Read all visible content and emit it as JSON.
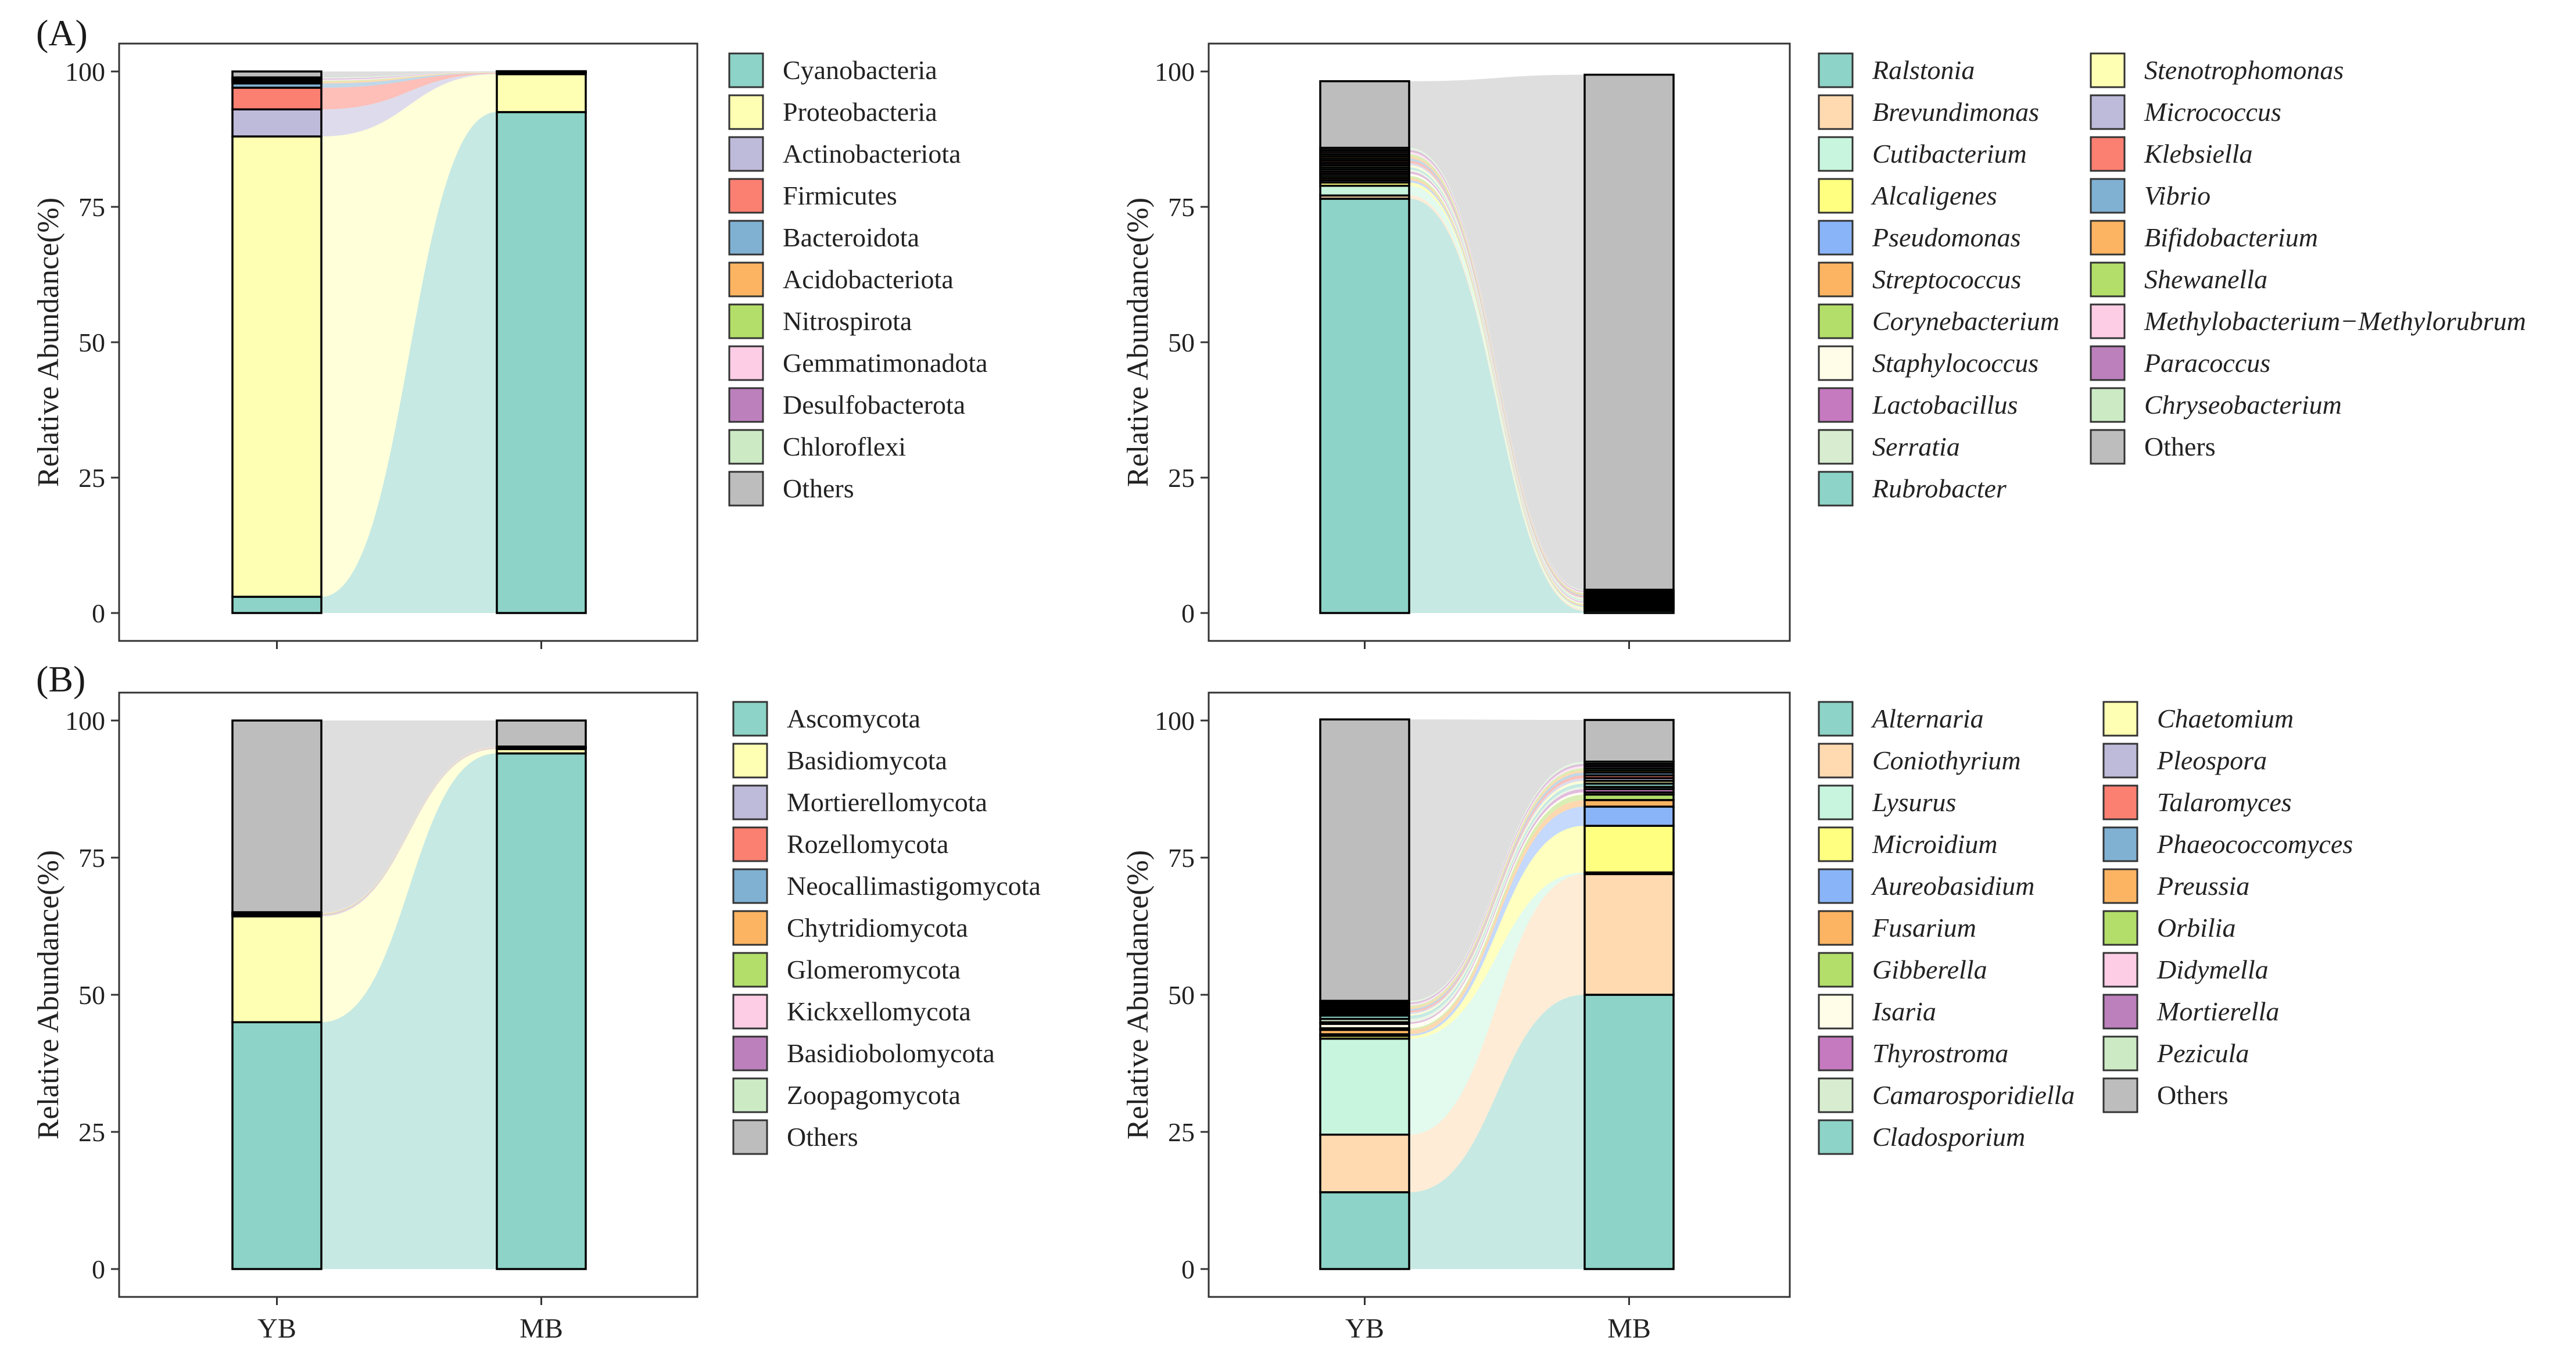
{
  "panel_labels": [
    "(A)",
    "(B)"
  ],
  "y_axis_label": "Relative Abundance(%)",
  "y_ticks": [
    "0",
    "25",
    "50",
    "75",
    "100"
  ],
  "x_categories": [
    "YB",
    "MB"
  ],
  "chart_data": [
    {
      "type": "bar",
      "stacked": true,
      "alluvial_flows": true,
      "panel": "(A)",
      "ylabel": "Relative Abundance(%)",
      "ylim": [
        0,
        100
      ],
      "categories": [
        "YB",
        "MB"
      ],
      "show_x_tick_labels": false,
      "italic_legend": false,
      "legend_columns": 1,
      "series": [
        {
          "name": "Cyanobacteria",
          "color": "#8DD3C7",
          "values": [
            3.0,
            92.5
          ]
        },
        {
          "name": "Proteobacteria",
          "color": "#FFFFB3",
          "values": [
            85.0,
            7.0
          ]
        },
        {
          "name": "Actinobacteriota",
          "color": "#BEBADA",
          "values": [
            5.0,
            0.1
          ]
        },
        {
          "name": "Firmicutes",
          "color": "#FB8072",
          "values": [
            4.0,
            0.1
          ]
        },
        {
          "name": "Bacteroidota",
          "color": "#80B1D3",
          "values": [
            0.8,
            0.05
          ]
        },
        {
          "name": "Acidobacteriota",
          "color": "#FDB462",
          "values": [
            0.3,
            0.05
          ]
        },
        {
          "name": "Nitrospirota",
          "color": "#B3DE69",
          "values": [
            0.2,
            0.05
          ]
        },
        {
          "name": "Gemmatimonadota",
          "color": "#FCCDE5",
          "values": [
            0.2,
            0.05
          ]
        },
        {
          "name": "Desulfobacterota",
          "color": "#BC80BD",
          "values": [
            0.2,
            0.05
          ]
        },
        {
          "name": "Chloroflexi",
          "color": "#CCEBC5",
          "values": [
            0.2,
            0.05
          ]
        },
        {
          "name": "Others",
          "color": "#BDBDBD",
          "values": [
            1.1,
            0.05
          ]
        }
      ]
    },
    {
      "type": "bar",
      "stacked": true,
      "alluvial_flows": true,
      "panel": "",
      "ylabel": "Relative Abundance(%)",
      "ylim": [
        0,
        100
      ],
      "categories": [
        "YB",
        "MB"
      ],
      "show_x_tick_labels": false,
      "italic_legend": true,
      "legend_columns": 2,
      "series": [
        {
          "name": "Ralstonia",
          "color": "#8DD3C7",
          "values": [
            76.5,
            0.4
          ]
        },
        {
          "name": "Brevundimonas",
          "color": "#FFDAB0",
          "values": [
            0.6,
            0.3
          ]
        },
        {
          "name": "Cutibacterium",
          "color": "#C7F5DE",
          "values": [
            1.8,
            0.2
          ]
        },
        {
          "name": "Alcaligenes",
          "color": "#FFFF80",
          "values": [
            0.6,
            0.2
          ]
        },
        {
          "name": "Pseudomonas",
          "color": "#8AB4F8",
          "values": [
            0.4,
            0.2
          ]
        },
        {
          "name": "Streptococcus",
          "color": "#FDB462",
          "values": [
            0.4,
            0.2
          ]
        },
        {
          "name": "Corynebacterium",
          "color": "#B3DE69",
          "values": [
            0.4,
            0.2
          ]
        },
        {
          "name": "Staphylococcus",
          "color": "#FFFDE8",
          "values": [
            0.4,
            0.2
          ]
        },
        {
          "name": "Lactobacillus",
          "color": "#C57ABF",
          "values": [
            0.4,
            0.2
          ]
        },
        {
          "name": "Serratia",
          "color": "#D8ECCF",
          "values": [
            0.4,
            0.2
          ]
        },
        {
          "name": "Rubrobacter",
          "color": "#8DD3C7",
          "values": [
            0.4,
            0.2
          ]
        },
        {
          "name": "Stenotrophomonas",
          "color": "#FFFFB3",
          "values": [
            0.4,
            0.2
          ]
        },
        {
          "name": "Micrococcus",
          "color": "#BEBADA",
          "values": [
            0.4,
            0.2
          ]
        },
        {
          "name": "Klebsiella",
          "color": "#FB8072",
          "values": [
            0.4,
            0.2
          ]
        },
        {
          "name": "Vibrio",
          "color": "#80B1D3",
          "values": [
            0.4,
            0.2
          ]
        },
        {
          "name": "Bifidobacterium",
          "color": "#FDB462",
          "values": [
            0.4,
            0.2
          ]
        },
        {
          "name": "Shewanella",
          "color": "#B3DE69",
          "values": [
            0.4,
            0.2
          ]
        },
        {
          "name": "Methylobacterium−Methylorubrum",
          "color": "#FCCDE5",
          "values": [
            0.4,
            0.2
          ]
        },
        {
          "name": "Paracoccus",
          "color": "#BC80BD",
          "values": [
            0.4,
            0.2
          ]
        },
        {
          "name": "Chryseobacterium",
          "color": "#CCEBC5",
          "values": [
            0.4,
            0.2
          ]
        },
        {
          "name": "Others",
          "color": "#BDBDBD",
          "values": [
            12.3,
            95.1
          ]
        }
      ]
    },
    {
      "type": "bar",
      "stacked": true,
      "alluvial_flows": true,
      "panel": "(B)",
      "ylabel": "Relative Abundance(%)",
      "ylim": [
        0,
        100
      ],
      "categories": [
        "YB",
        "MB"
      ],
      "show_x_tick_labels": true,
      "italic_legend": false,
      "legend_columns": 1,
      "series": [
        {
          "name": "Ascomycota",
          "color": "#8DD3C7",
          "values": [
            45.0,
            94.0
          ]
        },
        {
          "name": "Basidiomycota",
          "color": "#FFFFB3",
          "values": [
            19.3,
            0.8
          ]
        },
        {
          "name": "Mortierellomycota",
          "color": "#BEBADA",
          "values": [
            0.2,
            0.1
          ]
        },
        {
          "name": "Rozellomycota",
          "color": "#FB8072",
          "values": [
            0.1,
            0.05
          ]
        },
        {
          "name": "Neocallimastigomycota",
          "color": "#80B1D3",
          "values": [
            0.1,
            0.05
          ]
        },
        {
          "name": "Chytridiomycota",
          "color": "#FDB462",
          "values": [
            0.1,
            0.05
          ]
        },
        {
          "name": "Glomeromycota",
          "color": "#B3DE69",
          "values": [
            0.1,
            0.05
          ]
        },
        {
          "name": "Kickxellomycota",
          "color": "#FCCDE5",
          "values": [
            0.05,
            0.05
          ]
        },
        {
          "name": "Basidiobolomycota",
          "color": "#BC80BD",
          "values": [
            0.05,
            0.05
          ]
        },
        {
          "name": "Zoopagomycota",
          "color": "#CCEBC5",
          "values": [
            0.05,
            0.05
          ]
        },
        {
          "name": "Others",
          "color": "#BDBDBD",
          "values": [
            34.95,
            4.75
          ]
        }
      ]
    },
    {
      "type": "bar",
      "stacked": true,
      "alluvial_flows": true,
      "panel": "",
      "ylabel": "Relative Abundance(%)",
      "ylim": [
        0,
        100
      ],
      "categories": [
        "YB",
        "MB"
      ],
      "show_x_tick_labels": true,
      "italic_legend": true,
      "legend_columns": 2,
      "series": [
        {
          "name": "Alternaria",
          "color": "#8DD3C7",
          "values": [
            14.0,
            50.0
          ]
        },
        {
          "name": "Coniothyrium",
          "color": "#FFDAB0",
          "values": [
            10.5,
            22.0
          ]
        },
        {
          "name": "Lysurus",
          "color": "#C7F5DE",
          "values": [
            17.5,
            0.3
          ]
        },
        {
          "name": "Microidium",
          "color": "#FFFF80",
          "values": [
            0.5,
            8.5
          ]
        },
        {
          "name": "Aureobasidium",
          "color": "#8AB4F8",
          "values": [
            0.3,
            3.5
          ]
        },
        {
          "name": "Fusarium",
          "color": "#FDB462",
          "values": [
            0.8,
            1.2
          ]
        },
        {
          "name": "Gibberella",
          "color": "#B3DE69",
          "values": [
            0.3,
            1.0
          ]
        },
        {
          "name": "Isaria",
          "color": "#FFFDE8",
          "values": [
            0.8,
            0.4
          ]
        },
        {
          "name": "Thyrostroma",
          "color": "#C57ABF",
          "values": [
            0.3,
            0.6
          ]
        },
        {
          "name": "Camarosporidiella",
          "color": "#D8ECCF",
          "values": [
            0.6,
            0.4
          ]
        },
        {
          "name": "Cladosporium",
          "color": "#8DD3C7",
          "values": [
            0.6,
            0.6
          ]
        },
        {
          "name": "Chaetomium",
          "color": "#FFFFB3",
          "values": [
            0.3,
            0.5
          ]
        },
        {
          "name": "Pleospora",
          "color": "#BEBADA",
          "values": [
            0.3,
            0.5
          ]
        },
        {
          "name": "Talaromyces",
          "color": "#FB8072",
          "values": [
            0.3,
            0.5
          ]
        },
        {
          "name": "Phaeococcomyces",
          "color": "#80B1D3",
          "values": [
            0.3,
            0.5
          ]
        },
        {
          "name": "Preussia",
          "color": "#FDB462",
          "values": [
            0.3,
            0.4
          ]
        },
        {
          "name": "Orbilia",
          "color": "#B3DE69",
          "values": [
            0.3,
            0.4
          ]
        },
        {
          "name": "Didymella",
          "color": "#FCCDE5",
          "values": [
            0.3,
            0.4
          ]
        },
        {
          "name": "Mortierella",
          "color": "#BC80BD",
          "values": [
            0.3,
            0.4
          ]
        },
        {
          "name": "Pezicula",
          "color": "#CCEBC5",
          "values": [
            0.3,
            0.4
          ]
        },
        {
          "name": "Others",
          "color": "#BDBDBD",
          "values": [
            51.3,
            7.6
          ]
        }
      ]
    }
  ]
}
